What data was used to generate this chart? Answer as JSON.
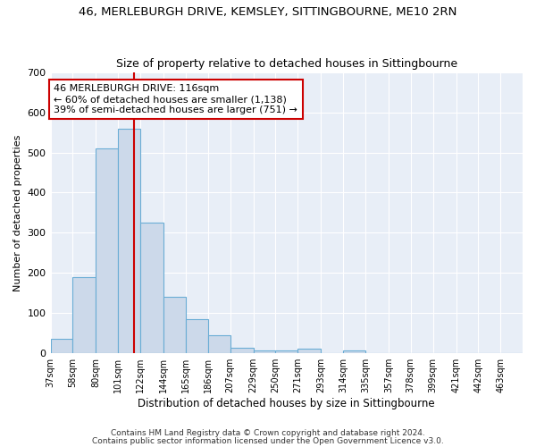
{
  "title1": "46, MERLEBURGH DRIVE, KEMSLEY, SITTINGBOURNE, ME10 2RN",
  "title2": "Size of property relative to detached houses in Sittingbourne",
  "xlabel": "Distribution of detached houses by size in Sittingbourne",
  "ylabel": "Number of detached properties",
  "bin_labels": [
    "37sqm",
    "58sqm",
    "80sqm",
    "101sqm",
    "122sqm",
    "144sqm",
    "165sqm",
    "186sqm",
    "207sqm",
    "229sqm",
    "250sqm",
    "271sqm",
    "293sqm",
    "314sqm",
    "335sqm",
    "357sqm",
    "378sqm",
    "399sqm",
    "421sqm",
    "442sqm",
    "463sqm"
  ],
  "bin_edges": [
    37,
    58,
    80,
    101,
    122,
    144,
    165,
    186,
    207,
    229,
    250,
    271,
    293,
    314,
    335,
    357,
    378,
    399,
    421,
    442,
    463
  ],
  "bar_heights": [
    35,
    190,
    510,
    560,
    325,
    140,
    85,
    45,
    13,
    6,
    6,
    10,
    0,
    5,
    0,
    0,
    0,
    0,
    0,
    0,
    0
  ],
  "bar_color": "#ccd9ea",
  "bar_edge_color": "#6aadd5",
  "plot_bg_color": "#e8eef7",
  "red_line_x": 116,
  "annotation_text": "46 MERLEBURGH DRIVE: 116sqm\n← 60% of detached houses are smaller (1,138)\n39% of semi-detached houses are larger (751) →",
  "annotation_box_color": "#ffffff",
  "annotation_box_edge": "#cc0000",
  "footer1": "Contains HM Land Registry data © Crown copyright and database right 2024.",
  "footer2": "Contains public sector information licensed under the Open Government Licence v3.0.",
  "ylim": [
    0,
    700
  ],
  "yticks": [
    0,
    100,
    200,
    300,
    400,
    500,
    600,
    700
  ],
  "bg_color": "#ffffff",
  "grid_color": "#ffffff"
}
